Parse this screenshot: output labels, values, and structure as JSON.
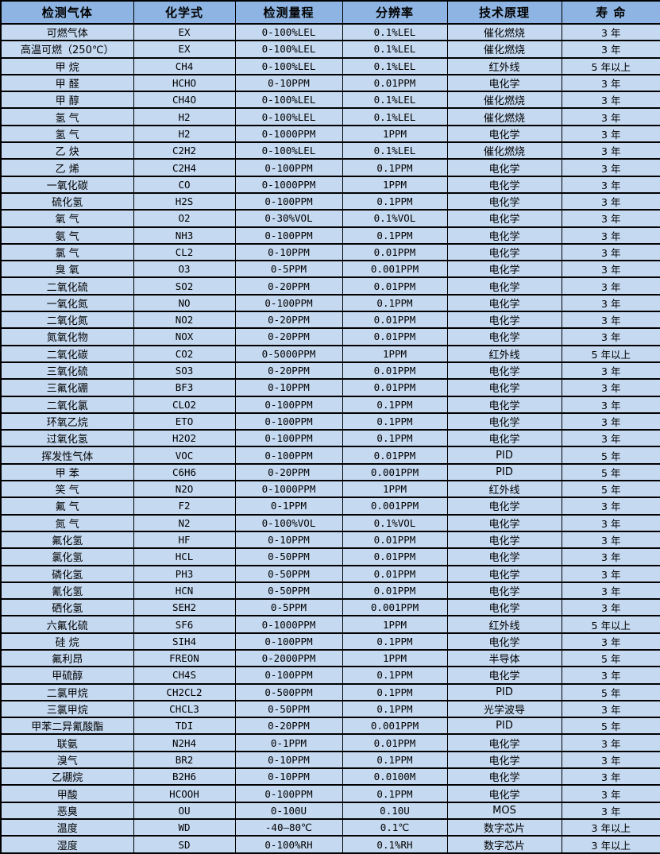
{
  "colors": {
    "header_bg": "#8DB4E2",
    "row_bg": "#C5D9F1",
    "border": "#000000",
    "text": "#000000"
  },
  "table": {
    "columns": [
      "检测气体",
      "化学式",
      "检测量程",
      "分辨率",
      "技术原理",
      "寿 命"
    ],
    "column_keys": [
      "gas-name",
      "formula",
      "range",
      "resolution",
      "principle",
      "lifespan"
    ],
    "rows": [
      [
        "可燃气体",
        "EX",
        "0-100%LEL",
        "0.1%LEL",
        "催化燃烧",
        "3 年"
      ],
      [
        "高温可燃（250℃）",
        "EX",
        "0-100%LEL",
        "0.1%LEL",
        "催化燃烧",
        "3 年"
      ],
      [
        "甲 烷",
        "CH4",
        "0-100%LEL",
        "0.1%LEL",
        "红外线",
        "5 年以上"
      ],
      [
        "甲 醛",
        "HCHO",
        "0-10PPM",
        "0.01PPM",
        "电化学",
        "3 年"
      ],
      [
        "甲 醇",
        "CH4O",
        "0-100%LEL",
        "0.1%LEL",
        "催化燃烧",
        "3 年"
      ],
      [
        "氢 气",
        "H2",
        "0-100%LEL",
        "0.1%LEL",
        "催化燃烧",
        "3 年"
      ],
      [
        "氢 气",
        "H2",
        "0-1000PPM",
        "1PPM",
        "电化学",
        "3 年"
      ],
      [
        "乙 炔",
        "C2H2",
        "0-100%LEL",
        "0.1%LEL",
        "催化燃烧",
        "3 年"
      ],
      [
        "乙 烯",
        "C2H4",
        "0-100PPM",
        "0.1PPM",
        "电化学",
        "3 年"
      ],
      [
        "一氧化碳",
        "CO",
        "0-1000PPM",
        "1PPM",
        "电化学",
        "3 年"
      ],
      [
        "硫化氢",
        "H2S",
        "0-100PPM",
        "0.1PPM",
        "电化学",
        "3 年"
      ],
      [
        "氧 气",
        "O2",
        "0-30%VOL",
        "0.1%VOL",
        "电化学",
        "3 年"
      ],
      [
        "氨 气",
        "NH3",
        "0-100PPM",
        "0.1PPM",
        "电化学",
        "3 年"
      ],
      [
        "氯 气",
        "CL2",
        "0-10PPM",
        "0.01PPM",
        "电化学",
        "3 年"
      ],
      [
        "臭 氧",
        "O3",
        "0-5PPM",
        "0.001PPM",
        "电化学",
        "3 年"
      ],
      [
        "二氧化硫",
        "SO2",
        "0-20PPM",
        "0.01PPM",
        "电化学",
        "3 年"
      ],
      [
        "一氧化氮",
        "NO",
        "0-100PPM",
        "0.1PPM",
        "电化学",
        "3 年"
      ],
      [
        "二氧化氮",
        "NO2",
        "0-20PPM",
        "0.01PPM",
        "电化学",
        "3 年"
      ],
      [
        "氮氧化物",
        "NOX",
        "0-20PPM",
        "0.01PPM",
        "电化学",
        "3 年"
      ],
      [
        "二氧化碳",
        "CO2",
        "0-5000PPM",
        "1PPM",
        "红外线",
        "5 年以上"
      ],
      [
        "三氧化硫",
        "SO3",
        "0-20PPM",
        "0.01PPM",
        "电化学",
        "3 年"
      ],
      [
        "三氟化硼",
        "BF3",
        "0-10PPM",
        "0.01PPM",
        "电化学",
        "3 年"
      ],
      [
        "二氧化氯",
        "CLO2",
        "0-100PPM",
        "0.1PPM",
        "电化学",
        "3 年"
      ],
      [
        "环氧乙烷",
        "ETO",
        "0-100PPM",
        "0.1PPM",
        "电化学",
        "3 年"
      ],
      [
        "过氧化氢",
        "H2O2",
        "0-100PPM",
        "0.1PPM",
        "电化学",
        "3 年"
      ],
      [
        "挥发性气体",
        "VOC",
        "0-100PPM",
        "0.01PPM",
        "PID",
        "5 年"
      ],
      [
        "甲 苯",
        "C6H6",
        "0-20PPM",
        "0.001PPM",
        "PID",
        "5 年"
      ],
      [
        "笑 气",
        "N2O",
        "0-1000PPM",
        "1PPM",
        "红外线",
        "5 年"
      ],
      [
        "氟 气",
        "F2",
        "0-1PPM",
        "0.001PPM",
        "电化学",
        "3 年"
      ],
      [
        "氮 气",
        "N2",
        "0-100%VOL",
        "0.1%VOL",
        "电化学",
        "3 年"
      ],
      [
        "氟化氢",
        "HF",
        "0-10PPM",
        "0.01PPM",
        "电化学",
        "3 年"
      ],
      [
        "氯化氢",
        "HCL",
        "0-50PPM",
        "0.01PPM",
        "电化学",
        "3 年"
      ],
      [
        "磷化氢",
        "PH3",
        "0-50PPM",
        "0.01PPM",
        "电化学",
        "3 年"
      ],
      [
        "氰化氢",
        "HCN",
        "0-50PPM",
        "0.01PPM",
        "电化学",
        "3 年"
      ],
      [
        "硒化氢",
        "SEH2",
        "0-5PPM",
        "0.001PPM",
        "电化学",
        "3 年"
      ],
      [
        "六氟化硫",
        "SF6",
        "0-1000PPM",
        "1PPM",
        "红外线",
        "5 年以上"
      ],
      [
        "硅 烷",
        "SIH4",
        "0-100PPM",
        "0.1PPM",
        "电化学",
        "3 年"
      ],
      [
        "氟利昂",
        "FREON",
        "0-2000PPM",
        "1PPM",
        "半导体",
        "5 年"
      ],
      [
        "甲硫醇",
        "CH4S",
        "0-100PPM",
        "0.1PPM",
        "电化学",
        "3 年"
      ],
      [
        "二氯甲烷",
        "CH2CL2",
        "0-500PPM",
        "0.1PPM",
        "PID",
        "5 年"
      ],
      [
        "三氯甲烷",
        "CHCL3",
        "0-50PPM",
        "0.1PPM",
        "光学波导",
        "3 年"
      ],
      [
        "甲苯二异氰酸酯",
        "TDI",
        "0-20PPM",
        "0.001PPM",
        "PID",
        "5 年"
      ],
      [
        "联氨",
        "N2H4",
        "0-1PPM",
        "0.01PPM",
        "电化学",
        "3 年"
      ],
      [
        "溴气",
        "BR2",
        "0-10PPM",
        "0.1PPM",
        "电化学",
        "3 年"
      ],
      [
        "乙硼烷",
        "B2H6",
        "0-10PPM",
        "0.0100M",
        "电化学",
        "3 年"
      ],
      [
        "甲酸",
        "HCOOH",
        "0-100PPM",
        "0.1PPM",
        "电化学",
        "3 年"
      ],
      [
        "恶臭",
        "OU",
        "0-100U",
        "0.10U",
        "MOS",
        "3 年"
      ],
      [
        "温度",
        "WD",
        "-40—80℃",
        "0.1℃",
        "数字芯片",
        "3 年以上"
      ],
      [
        "湿度",
        "SD",
        "0-100%RH",
        "0.1%RH",
        "数字芯片",
        "3 年以上"
      ]
    ]
  }
}
